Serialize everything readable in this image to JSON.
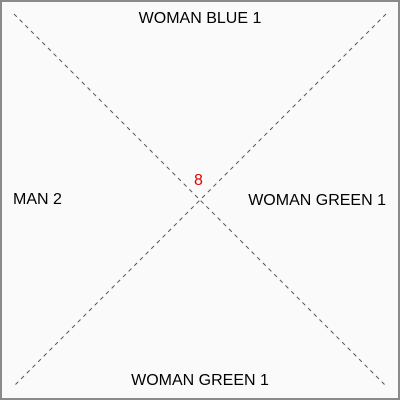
{
  "card": {
    "top_label": "WOMAN BLUE 1",
    "left_label": "MAN 2",
    "right_label": "WOMAN GREEN 1",
    "bottom_label": "WOMAN GREEN 1",
    "center_number": "8"
  },
  "colors": {
    "background": "#fafafa",
    "border": "#8a8a8a",
    "diagonal": "#555555",
    "center_number": "#e00000",
    "text": "#000000"
  }
}
